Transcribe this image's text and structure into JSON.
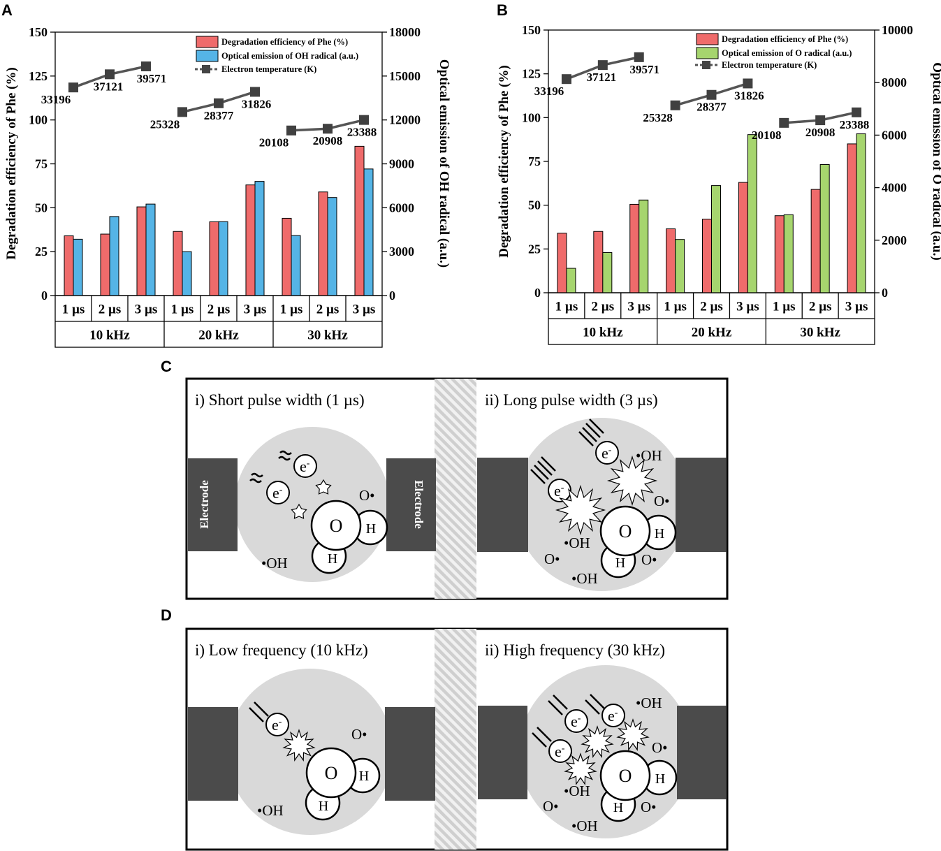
{
  "panels": {
    "a": "A",
    "b": "B",
    "c": "C",
    "d": "D"
  },
  "chart_data": [
    {
      "type": "bar",
      "panel": "A",
      "categories": [
        "1 µs",
        "2 µs",
        "3 µs",
        "1 µs",
        "2 µs",
        "3 µs",
        "1 µs",
        "2 µs",
        "3 µs"
      ],
      "groups": [
        "10 kHz",
        "20 kHz",
        "30 kHz"
      ],
      "series": [
        {
          "name": "Degradation efficiency of Phe (%)",
          "axis": "left",
          "color": "#ef6b6b",
          "values": [
            34,
            35,
            50.5,
            36.5,
            42,
            63,
            44,
            59,
            85
          ]
        },
        {
          "name": "Optical emission of OH radical (a.u.)",
          "axis": "right",
          "color": "#55b4e6",
          "values": [
            3850,
            5400,
            6250,
            3000,
            5050,
            7800,
            4100,
            6700,
            8650
          ]
        },
        {
          "name": "Electron temperature (K)",
          "type": "line",
          "labels": [
            "33196",
            "37121",
            "39571",
            "25328",
            "28377",
            "31826",
            "20108",
            "20908",
            "23388"
          ],
          "y_left": [
            118.5,
            126,
            130.5,
            104.5,
            109.5,
            116,
            94,
            95,
            100
          ]
        }
      ],
      "ylabel": "Degradation efficiency of Phe (%)",
      "y2label": "Optical emission of OH radical (a.u.)",
      "ylim": [
        0,
        150
      ],
      "yticks": [
        "0",
        "25",
        "50",
        "75",
        "100",
        "125",
        "150"
      ],
      "y2lim": [
        0,
        18000
      ],
      "y2ticks": [
        "0",
        "3000",
        "6000",
        "9000",
        "12000",
        "15000",
        "18000"
      ]
    },
    {
      "type": "bar",
      "panel": "B",
      "categories": [
        "1 µs",
        "2 µs",
        "3 µs",
        "1 µs",
        "2 µs",
        "3 µs",
        "1 µs",
        "2 µs",
        "3 µs"
      ],
      "groups": [
        "10 kHz",
        "20 kHz",
        "30 kHz"
      ],
      "series": [
        {
          "name": "Degradation efficiency of Phe (%)",
          "axis": "left",
          "color": "#ef6b6b",
          "values": [
            34,
            35,
            50.5,
            36.5,
            42,
            63,
            44,
            59,
            85
          ]
        },
        {
          "name": "Optical emission of O radical (a.u.)",
          "axis": "right",
          "color": "#a6d56e",
          "values": [
            930,
            1530,
            3530,
            2030,
            4080,
            6020,
            2970,
            4880,
            6050
          ]
        },
        {
          "name": "Electron temperature (K)",
          "type": "line",
          "labels": [
            "33196",
            "37121",
            "39571",
            "25328",
            "28377",
            "31826",
            "20108",
            "20908",
            "23388"
          ],
          "y_left": [
            122,
            130,
            134.5,
            107,
            113,
            119.5,
            97,
            98.5,
            103
          ]
        }
      ],
      "ylabel": "Degradation efficiency of Phe (%)",
      "y2label": "Optical emission of O radical (a.u.)",
      "ylim": [
        0,
        150
      ],
      "yticks": [
        "0",
        "25",
        "50",
        "75",
        "100",
        "125",
        "150"
      ],
      "y2lim": [
        0,
        10000
      ],
      "y2ticks": [
        "0",
        "2000",
        "4000",
        "6000",
        "8000",
        "10000"
      ]
    }
  ],
  "diagram_c": {
    "left_title": "i) Short pulse width (1 µs)",
    "right_title": "ii) Long pulse width (3 µs)",
    "electrode_label": "Electrode",
    "electron": "e",
    "electron_sup": "-",
    "oh_label": "•OH",
    "o_label": "O•",
    "o_atom": "O",
    "h_atom": "H"
  },
  "diagram_d": {
    "left_title": "i) Low frequency (10 kHz)",
    "right_title": "ii) High frequency (30 kHz)",
    "electron": "e",
    "electron_sup": "-",
    "oh_label": "•OH",
    "o_label": "O•",
    "o_atom": "O",
    "h_atom": "H"
  }
}
